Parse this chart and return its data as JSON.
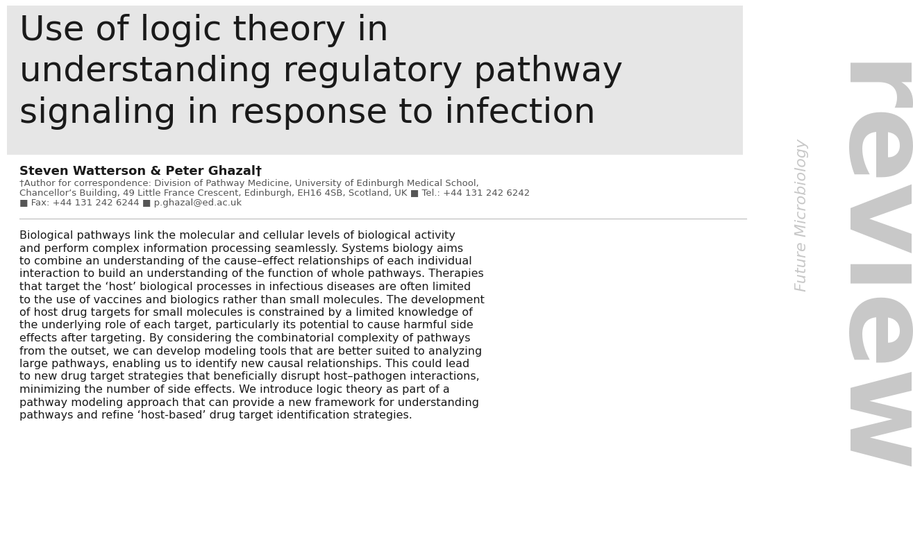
{
  "bg_color": "#ffffff",
  "title_bg_color": "#e6e6e6",
  "title_text": "Use of logic theory in\nunderstanding regulatory pathway\nsignaling in response to infection",
  "title_color": "#1a1a1a",
  "title_fontsize": 36,
  "authors_text": "Steven Watterson & Peter Ghazal†",
  "authors_fontsize": 13,
  "authors_color": "#1a1a1a",
  "affiliation_line1": "†Author for correspondence: Division of Pathway Medicine, University of Edinburgh Medical School,",
  "affiliation_line2": "Chancellor’s Building, 49 Little France Crescent, Edinburgh, EH16 4SB, Scotland, UK ■ Tel.: +44 131 242 6242",
  "affiliation_line3": "■ Fax: +44 131 242 6244 ■ p.ghazal@ed.ac.uk",
  "affiliation_fontsize": 9.5,
  "affiliation_color": "#555555",
  "abstract_lines": [
    "Biological pathways link the molecular and cellular levels of biological activity",
    "and perform complex information processing seamlessly. Systems biology aims",
    "to combine an understanding of the cause–effect relationships of each individual",
    "interaction to build an understanding of the function of whole pathways. Therapies",
    "that target the ‘host’ biological processes in infectious diseases are often limited",
    "to the use of vaccines and biologics rather than small molecules. The development",
    "of host drug targets for small molecules is constrained by a limited knowledge of",
    "the underlying role of each target, particularly its potential to cause harmful side",
    "effects after targeting. By considering the combinatorial complexity of pathways",
    "from the outset, we can develop modeling tools that are better suited to analyzing",
    "large pathways, enabling us to identify new causal relationships. This could lead",
    "to new drug target strategies that beneficially disrupt host–pathogen interactions,",
    "minimizing the number of side effects. We introduce logic theory as part of a",
    "pathway modeling approach that can provide a new framework for understanding",
    "pathways and refine ‘host-based’ drug target identification strategies."
  ],
  "abstract_fontsize": 11.5,
  "abstract_color": "#1a1a1a",
  "review_text": "review",
  "review_color": "#c8c8c8",
  "review_fontsize": 115,
  "journal_text": "Future Microbiology",
  "journal_color": "#c8c8c8",
  "journal_fontsize": 16,
  "separator_color": "#bbbbbb",
  "separator_linewidth": 0.8
}
